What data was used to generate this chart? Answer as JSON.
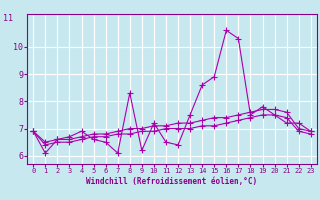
{
  "title": "",
  "xlabel": "Windchill (Refroidissement éolien,°C)",
  "ylabel": "",
  "background_color": "#c8e8f0",
  "grid_color": "#aaccdd",
  "line_color": "#aa00aa",
  "x": [
    0,
    1,
    2,
    3,
    4,
    5,
    6,
    7,
    8,
    9,
    10,
    11,
    12,
    13,
    14,
    15,
    16,
    17,
    18,
    19,
    20,
    21,
    22,
    23
  ],
  "line1": [
    6.9,
    6.1,
    6.6,
    6.7,
    6.9,
    6.6,
    6.5,
    6.1,
    8.3,
    6.2,
    7.2,
    6.5,
    6.4,
    7.5,
    8.6,
    8.9,
    10.6,
    10.3,
    7.5,
    7.8,
    7.5,
    7.2,
    7.2,
    6.9
  ],
  "line2": [
    6.9,
    6.5,
    6.6,
    6.6,
    6.7,
    6.8,
    6.8,
    6.9,
    7.0,
    7.0,
    7.1,
    7.1,
    7.2,
    7.2,
    7.3,
    7.4,
    7.4,
    7.5,
    7.6,
    7.7,
    7.7,
    7.6,
    7.0,
    6.9
  ],
  "line3": [
    6.9,
    6.4,
    6.5,
    6.5,
    6.6,
    6.7,
    6.7,
    6.8,
    6.8,
    6.9,
    6.9,
    7.0,
    7.0,
    7.0,
    7.1,
    7.1,
    7.2,
    7.3,
    7.4,
    7.5,
    7.5,
    7.4,
    6.9,
    6.8
  ],
  "ylim_min": 5.7,
  "ylim_max": 11.2,
  "ytick_label_top": "11",
  "yticks": [
    6,
    7,
    8,
    9,
    10
  ],
  "xticks": [
    0,
    1,
    2,
    3,
    4,
    5,
    6,
    7,
    8,
    9,
    10,
    11,
    12,
    13,
    14,
    15,
    16,
    17,
    18,
    19,
    20,
    21,
    22,
    23
  ]
}
